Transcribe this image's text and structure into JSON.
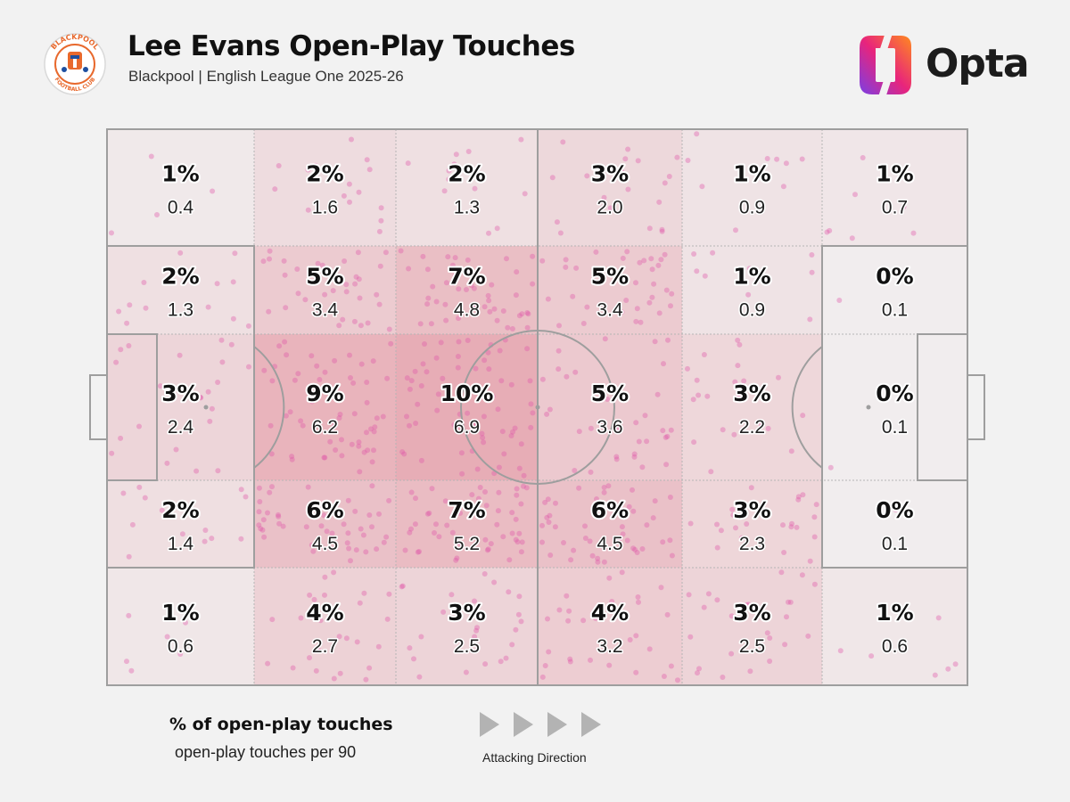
{
  "header": {
    "title": "Lee Evans Open-Play Touches",
    "subtitle": "Blackpool | English League One 2025-26",
    "brand": "Opta",
    "crest_text": "BLACKPOOL FOOTBALL CLUB"
  },
  "legend": {
    "pct_label": "% of open-play touches",
    "p90_label": "open-play touches per 90",
    "direction_label": "Attacking Direction"
  },
  "colors": {
    "background": "#f2f2f2",
    "pitch_lines": "#9e9e9e",
    "dot": "#e056a8",
    "zone_heat": "#e07a8a",
    "brand_gradient": [
      "#ff8a1f",
      "#e8247c",
      "#7b3fe4"
    ]
  },
  "chart_data": {
    "type": "heatmap",
    "title": "Lee Evans Open-Play Touches",
    "subtitle": "Blackpool | English League One 2025-26",
    "columns": 6,
    "rows": 5,
    "attacking_direction": "left-to-right",
    "pct_labels": [
      [
        "1%",
        "2%",
        "2%",
        "3%",
        "1%",
        "1%"
      ],
      [
        "2%",
        "5%",
        "7%",
        "5%",
        "1%",
        "0%"
      ],
      [
        "3%",
        "9%",
        "10%",
        "5%",
        "3%",
        "0%"
      ],
      [
        "2%",
        "6%",
        "7%",
        "6%",
        "3%",
        "0%"
      ],
      [
        "1%",
        "4%",
        "3%",
        "4%",
        "3%",
        "1%"
      ]
    ],
    "per90_labels": [
      [
        "0.4",
        "1.6",
        "1.3",
        "2.0",
        "0.9",
        "0.7"
      ],
      [
        "1.3",
        "3.4",
        "4.8",
        "3.4",
        "0.9",
        "0.1"
      ],
      [
        "2.4",
        "6.2",
        "6.9",
        "3.6",
        "2.2",
        "0.1"
      ],
      [
        "1.4",
        "4.5",
        "5.2",
        "4.5",
        "2.3",
        "0.1"
      ],
      [
        "0.6",
        "2.7",
        "2.5",
        "3.2",
        "2.5",
        "0.6"
      ]
    ]
  }
}
